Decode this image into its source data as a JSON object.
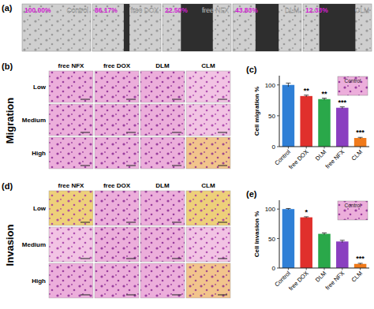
{
  "figure": {
    "panel_labels": [
      "(a)",
      "(b)",
      "(c)",
      "(d)",
      "(e)"
    ],
    "wound_healing": {
      "conditions": [
        "Control",
        "free DOX",
        "free NFX",
        "DLM",
        "CLM"
      ],
      "values": [
        100,
        86.17,
        22.5,
        43.83,
        12.33
      ],
      "value_labels": [
        "100.00%",
        "86.17%",
        "22.50%",
        "43.83%",
        "12.33%"
      ]
    },
    "migration": {
      "title": "Migration",
      "columns": [
        "free NFX",
        "free DOX",
        "DLM",
        "CLM"
      ],
      "rows": [
        "Low",
        "Medium",
        "High"
      ]
    },
    "invasion": {
      "title": "Invasion",
      "columns": [
        "free NFX",
        "free DOX",
        "DLM",
        "CLM"
      ],
      "rows": [
        "Low",
        "Medium",
        "High"
      ]
    }
  },
  "chart_data": [
    {
      "type": "bar",
      "y_label": "Cell migration %",
      "categories": [
        "Control",
        "free DOX",
        "DLM",
        "free NFX",
        "CLM"
      ],
      "values": [
        100,
        82,
        77,
        63,
        14
      ],
      "errors": [
        3,
        1.5,
        1.5,
        1.5,
        1
      ],
      "colors": [
        "#2f7fd6",
        "#e0302c",
        "#2aa84a",
        "#8a3fc0",
        "#f07a1a"
      ],
      "annotations": [
        null,
        "**",
        "**",
        "***",
        "***"
      ],
      "inset_label": "Control",
      "ylim": [
        0,
        115
      ],
      "yticks": [
        0,
        50,
        100
      ]
    },
    {
      "type": "bar",
      "y_label": "Cell invasion %",
      "categories": [
        "Control",
        "free DOX",
        "DLM",
        "free NFX",
        "CLM"
      ],
      "values": [
        100,
        86,
        58,
        45,
        7
      ],
      "errors": [
        1,
        1,
        1.5,
        2,
        1
      ],
      "colors": [
        "#2f7fd6",
        "#e0302c",
        "#2aa84a",
        "#8a3fc0",
        "#f07a1a"
      ],
      "annotations": [
        null,
        "*",
        null,
        null,
        "***"
      ],
      "inset_label": "Control",
      "ylim": [
        0,
        115
      ],
      "yticks": [
        0,
        50,
        100
      ]
    }
  ]
}
